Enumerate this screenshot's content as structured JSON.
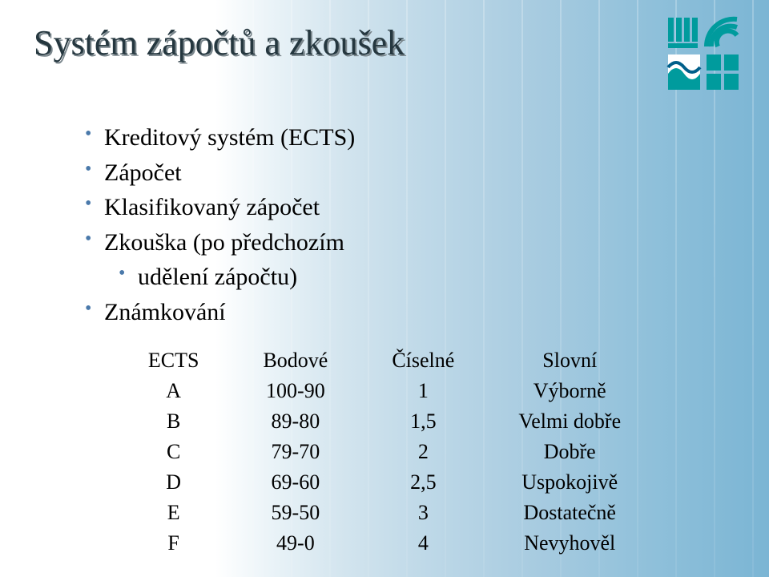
{
  "slide": {
    "title": "Systém zápočtů a zkoušek",
    "background": {
      "base_color": "#ffffff",
      "gradient_to": "#7bb5d4",
      "stripe_color": "rgba(255,255,255,0.28)"
    },
    "title_style": {
      "font_size_pt": 33,
      "color": "#25373f",
      "shadow_color": "#7a868c"
    },
    "bullets": [
      {
        "text": "Kreditový systém (ECTS)",
        "indent": 0
      },
      {
        "text": "Zápočet",
        "indent": 0
      },
      {
        "text": "Klasifikovaný zápočet",
        "indent": 0
      },
      {
        "text": "Zkouška (po předchozím",
        "indent": 0
      },
      {
        "text": "udělení zápočtu)",
        "indent": 1
      },
      {
        "text": "Známkování",
        "indent": 0
      }
    ],
    "bullet_style": {
      "font_size_pt": 22,
      "bullet_color": "#4a79aa",
      "text_color": "#000000"
    },
    "grade_table": {
      "type": "table",
      "columns": [
        "ECTS",
        "Bodové",
        "Číselné",
        "Slovní"
      ],
      "rows": [
        [
          "A",
          "100-90",
          "1",
          "Výborně"
        ],
        [
          "B",
          "89-80",
          "1,5",
          "Velmi dobře"
        ],
        [
          "C",
          "79-70",
          "2",
          "Dobře"
        ],
        [
          "D",
          "69-60",
          "2,5",
          "Uspokojivě"
        ],
        [
          "E",
          "59-50",
          "3",
          "Dostatečně"
        ],
        [
          "F",
          "49-0",
          "4",
          "Nevyhověl"
        ]
      ],
      "font_size_pt": 20,
      "header_font_weight": "normal",
      "text_color": "#000000",
      "column_align": [
        "center",
        "center",
        "center",
        "center"
      ]
    },
    "logo": {
      "primary_color": "#009b9d",
      "accent_color": "#005f8a"
    }
  }
}
